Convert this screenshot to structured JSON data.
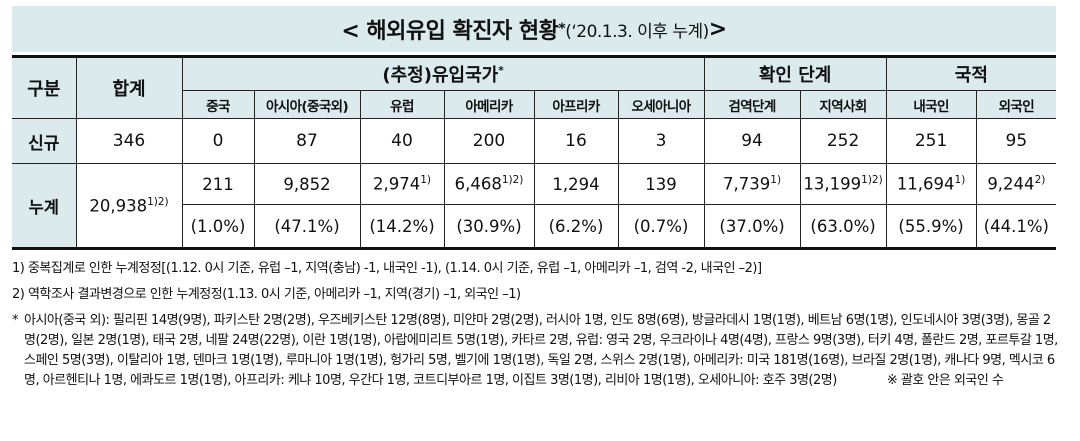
{
  "title": {
    "main": "< 해외유입 확진자 현황",
    "star": "*",
    "paren": "(‘20.1.3. 이후 누계)",
    "end": " >"
  },
  "table": {
    "col_gubun": "구분",
    "col_total": "합계",
    "group_origin": "(추정)유입국가",
    "group_origin_star": "*",
    "group_stage": "확인 단계",
    "group_nationality": "국적",
    "sub": {
      "china": "중국",
      "asia": "아시아(중국외)",
      "europe": "유럽",
      "america": "아메리카",
      "africa": "아프리카",
      "oceania": "오세아니아",
      "quarantine": "검역단계",
      "community": "지역사회",
      "korean": "내국인",
      "foreign": "외국인"
    },
    "new": {
      "label": "신규",
      "total": "346",
      "china": "0",
      "asia": "87",
      "europe": "40",
      "america": "200",
      "africa": "16",
      "oceania": "3",
      "quarantine": "94",
      "community": "252",
      "korean": "251",
      "foreign": "95"
    },
    "cum": {
      "label": "누계",
      "total": "20,938",
      "total_sup": "1)2)",
      "china": "211",
      "asia": "9,852",
      "europe": "2,974",
      "europe_sup": "1)",
      "america": "6,468",
      "america_sup": "1)2)",
      "africa": "1,294",
      "oceania": "139",
      "quarantine": "7,739",
      "quarantine_sup": "1)",
      "community": "13,199",
      "community_sup": "1)2)",
      "korean": "11,694",
      "korean_sup": "1)",
      "foreign": "9,244",
      "foreign_sup": "2)"
    },
    "pct": {
      "china": "(1.0%)",
      "asia": "(47.1%)",
      "europe": "(14.2%)",
      "america": "(30.9%)",
      "africa": "(6.2%)",
      "oceania": "(0.7%)",
      "quarantine": "(37.0%)",
      "community": "(63.0%)",
      "korean": "(55.9%)",
      "foreign": "(44.1%)"
    }
  },
  "notes": {
    "note1": "1) 중복집계로 인한 누계정정[(1.12. 0시 기준, 유럽 –1, 지역(충남) -1, 내국인 -1), (1.14. 0시 기준, 유럽 –1, 아메리카 –1, 검역 -2, 내국인 –2)]",
    "note2": "2) 역학조사 결과변경으로 인한 누계정정(1.13. 0시 기준, 아메리카 –1, 지역(경기) –1, 외국인 –1)",
    "star_mark": "*",
    "star_text": "아시아(중국 외): 필리핀 14명(9명), 파키스탄 2명(2명), 우즈베키스탄 12명(8명), 미얀마 2명(2명), 러시아 1명, 인도 8명(6명), 방글라데시 1명(1명), 베트남 6명(1명), 인도네시아 3명(3명), 몽골 2명(2명), 일본 2명(1명), 태국 2명, 네팔 24명(22명), 이란 1명(1명), 아랍에미리트 5명(1명), 카타르 2명, 유럽: 영국 2명, 우크라이나 4명(4명), 프랑스 9명(3명), 터키 4명, 폴란드 2명, 포르투갈 1명, 스페인 5명(3명), 이탈리아 1명, 덴마크 1명(1명), 루마니아 1명(1명), 헝가리 5명, 벨기에 1명(1명), 독일 2명, 스위스 2명(1명), 아메리카: 미국 181명(16명), 브라질 2명(1명), 캐나다 9명, 멕시코 6명, 아르헨티나 1명, 에콰도르 1명(1명), 아프리카: 케냐 10명, 우간다 1명, 코트디부아르 1명, 이집트 3명(1명), 리비아 1명(1명), 오세아니아: 호주 3명(2명)",
    "bracket_note": "※ 괄호 안은 외국인 수"
  },
  "colors": {
    "header_bg": "#dbeaec",
    "border": "#222222"
  }
}
